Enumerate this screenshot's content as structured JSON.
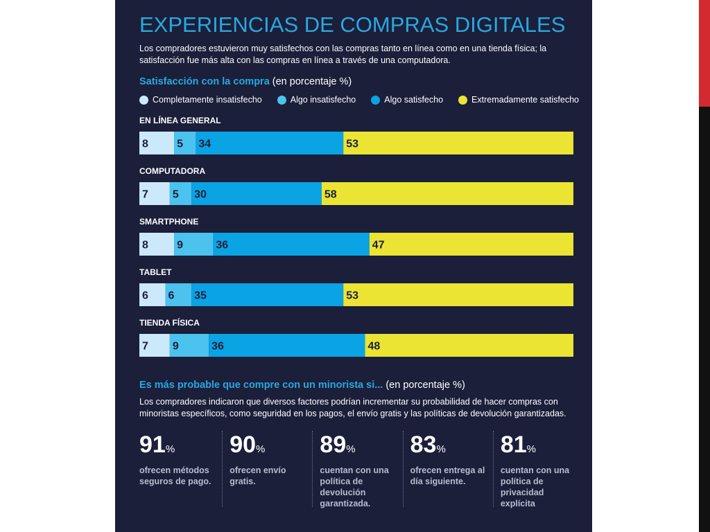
{
  "title": "EXPERIENCIAS DE COMPRAS DIGITALES",
  "subtitle": "Los compradores estuvieron muy satisfechos con las compras tanto en línea como en una tienda física; la satisfacción fue más alta con las compras en línea a través de una computadora.",
  "chart_title_bold": "Satisfacción con la compra",
  "chart_title_rest": " (en porcentaje %)",
  "colors": {
    "panel": "#1b1f3a",
    "accent": "#29a8e0",
    "completely_unsatisfied": "#cbe9fa",
    "somewhat_unsatisfied": "#4cc2ef",
    "somewhat_satisfied": "#0aa3e3",
    "extremely_satisfied": "#ebe433"
  },
  "chart_data": {
    "type": "bar",
    "orientation": "horizontal",
    "stacked": true,
    "title": "Satisfacción con la compra (en porcentaje %)",
    "categories": [
      "EN LÍNEA GENERAL",
      "COMPUTADORA",
      "SMARTPHONE",
      "TABLET",
      "TIENDA FÍSICA"
    ],
    "series": [
      {
        "name": "Completamente insatisfecho",
        "color": "#cbe9fa",
        "values": [
          8,
          7,
          8,
          6,
          7
        ]
      },
      {
        "name": "Algo insatisfecho",
        "color": "#4cc2ef",
        "values": [
          5,
          5,
          9,
          6,
          9
        ]
      },
      {
        "name": "Algo satisfecho",
        "color": "#0aa3e3",
        "values": [
          34,
          30,
          36,
          35,
          36
        ]
      },
      {
        "name": "Extremadamente satisfecho",
        "color": "#ebe433",
        "values": [
          53,
          58,
          47,
          53,
          48
        ]
      }
    ],
    "xlim": [
      0,
      100
    ],
    "grid": false,
    "legend": "top"
  },
  "section2": {
    "title_bold": "Es más probable que compre con un minorista si...",
    "title_rest": " (en porcentaje %)",
    "description": "Los compradores indicaron que diversos factores podrían incrementar su probabilidad de hacer compras con minoristas específicos, como seguridad en los pagos, el envío gratis y las políticas de devolución garantizadas.",
    "stats": [
      {
        "value": "91",
        "unit": "%",
        "text": "ofrecen métodos seguros de pago."
      },
      {
        "value": "90",
        "unit": "%",
        "text": "ofrecen envío gratis."
      },
      {
        "value": "89",
        "unit": "%",
        "text": "cuentan con una política de devolución garantizada."
      },
      {
        "value": "83",
        "unit": "%",
        "text": "ofrecen entrega al día siguiente."
      },
      {
        "value": "81",
        "unit": "%",
        "text": "cuentan con una política de privacidad explícita"
      }
    ]
  }
}
